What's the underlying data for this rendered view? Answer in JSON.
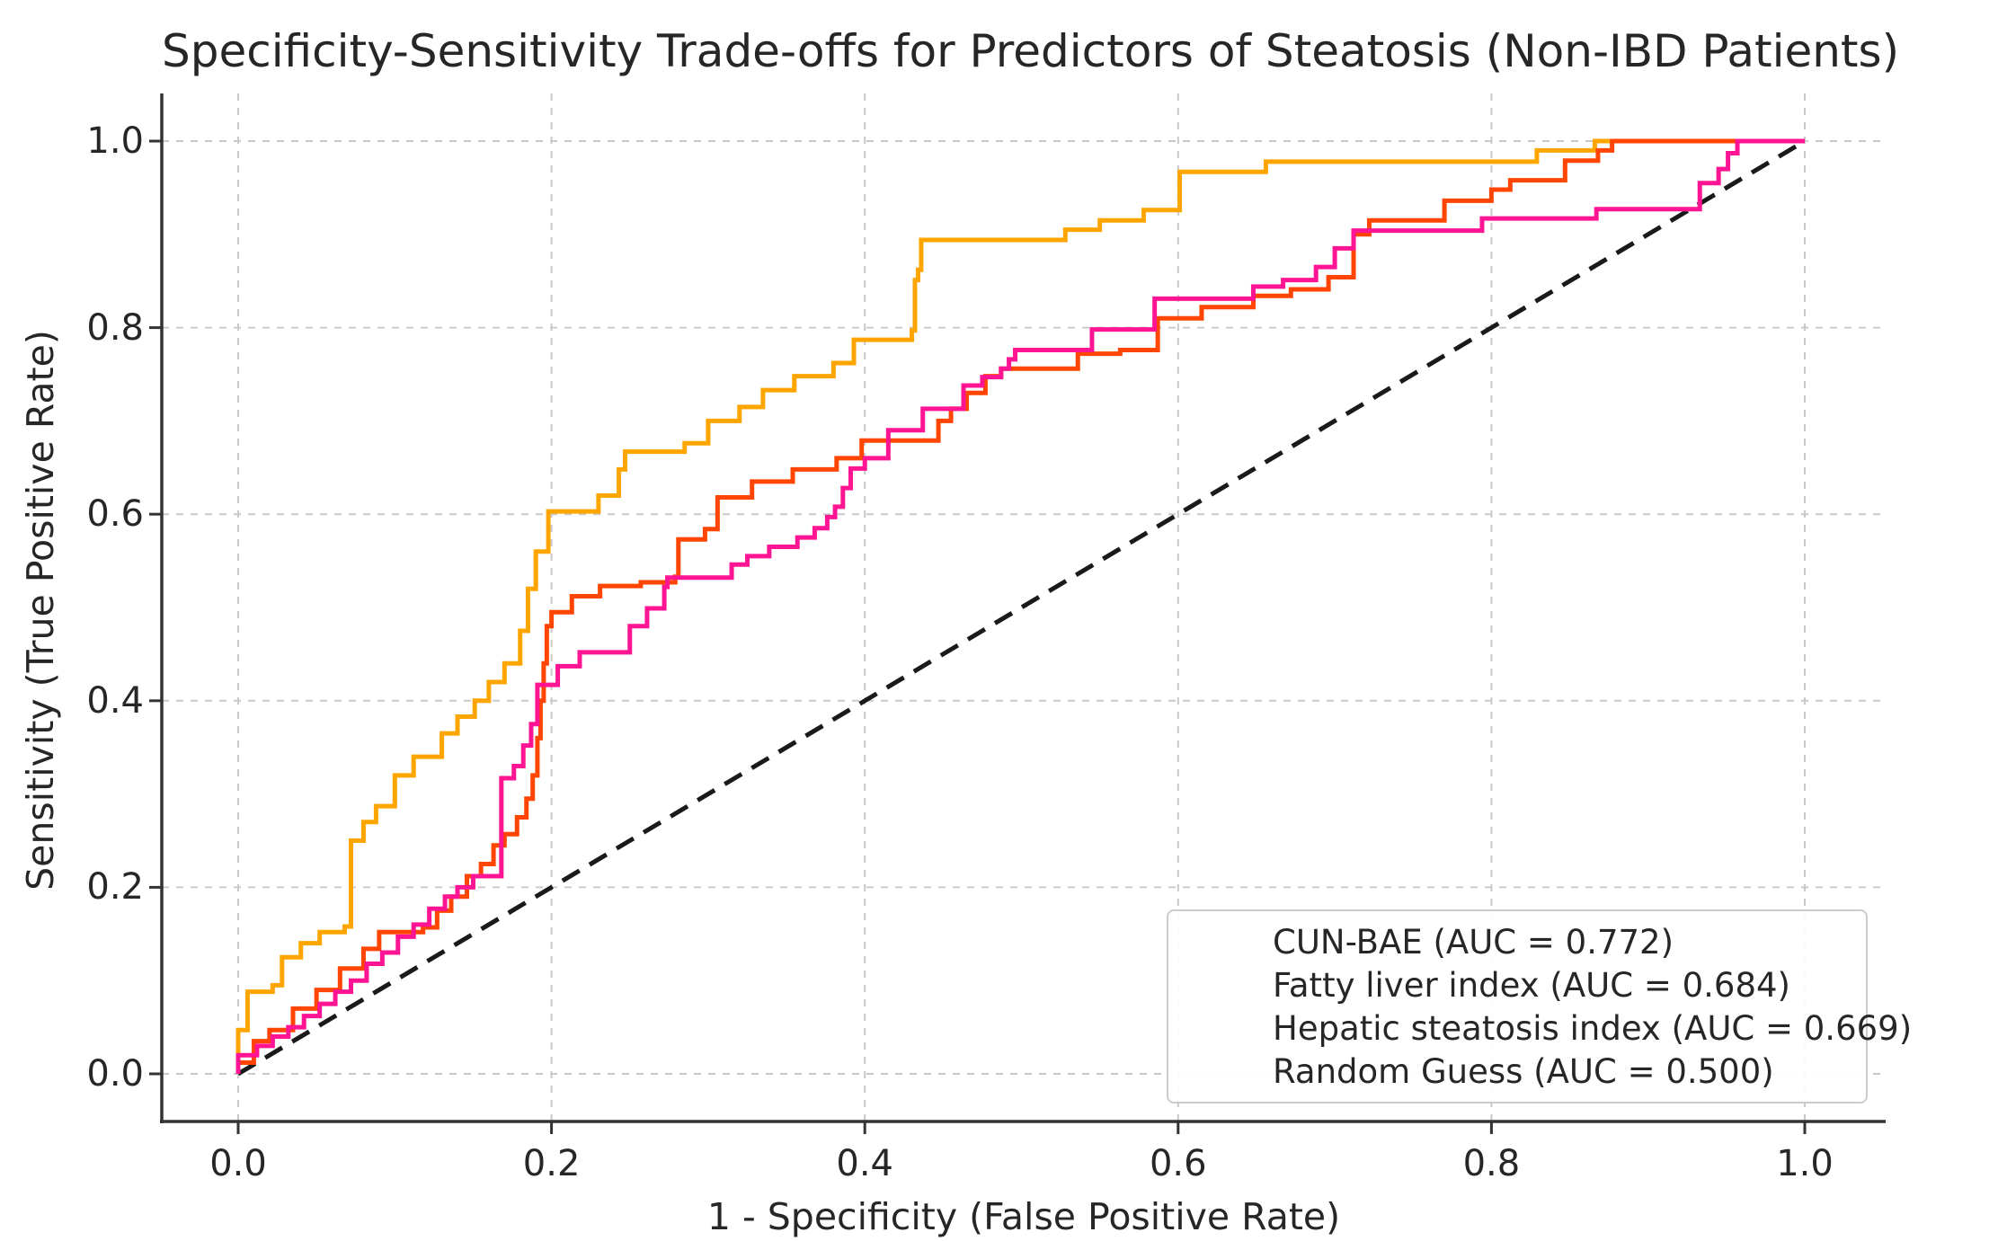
{
  "chart_data": {
    "type": "line",
    "subtype": "roc-step-curves",
    "title": "Specificity-Sensitivity Trade-offs for Predictors of Steatosis (Non-IBD Patients)",
    "xlabel": "1 - Specificity (False Positive Rate)",
    "ylabel": "Sensitivity (True Positive Rate)",
    "xlim": [
      0.0,
      1.0
    ],
    "ylim": [
      0.0,
      1.0
    ],
    "xticks": [
      "0.0",
      "0.2",
      "0.4",
      "0.6",
      "0.8",
      "1.0"
    ],
    "yticks": [
      "0.0",
      "0.2",
      "0.4",
      "0.6",
      "0.8",
      "1.0"
    ],
    "grid": true,
    "grid_style": "dashed",
    "spines": "left-bottom-only",
    "legend_position": "lower right",
    "series": [
      {
        "name": "CUN-BAE (AUC = 0.772)",
        "auc": 0.772,
        "color": "#FFA500",
        "style": "solid",
        "step": true,
        "points": [
          [
            0.0,
            0.0
          ],
          [
            0.0,
            0.047
          ],
          [
            0.006,
            0.088
          ],
          [
            0.022,
            0.095
          ],
          [
            0.028,
            0.125
          ],
          [
            0.04,
            0.14
          ],
          [
            0.052,
            0.152
          ],
          [
            0.068,
            0.158
          ],
          [
            0.072,
            0.25
          ],
          [
            0.08,
            0.27
          ],
          [
            0.088,
            0.287
          ],
          [
            0.1,
            0.32
          ],
          [
            0.112,
            0.34
          ],
          [
            0.13,
            0.365
          ],
          [
            0.14,
            0.383
          ],
          [
            0.151,
            0.4
          ],
          [
            0.16,
            0.42
          ],
          [
            0.17,
            0.44
          ],
          [
            0.18,
            0.475
          ],
          [
            0.185,
            0.52
          ],
          [
            0.19,
            0.56
          ],
          [
            0.198,
            0.603
          ],
          [
            0.23,
            0.62
          ],
          [
            0.243,
            0.648
          ],
          [
            0.247,
            0.667
          ],
          [
            0.285,
            0.676
          ],
          [
            0.3,
            0.7
          ],
          [
            0.32,
            0.715
          ],
          [
            0.335,
            0.733
          ],
          [
            0.355,
            0.748
          ],
          [
            0.38,
            0.762
          ],
          [
            0.393,
            0.787
          ],
          [
            0.43,
            0.797
          ],
          [
            0.432,
            0.851
          ],
          [
            0.434,
            0.862
          ],
          [
            0.436,
            0.894
          ],
          [
            0.528,
            0.905
          ],
          [
            0.55,
            0.915
          ],
          [
            0.578,
            0.926
          ],
          [
            0.601,
            0.967
          ],
          [
            0.656,
            0.978
          ],
          [
            0.829,
            0.99
          ],
          [
            0.866,
            1.0
          ],
          [
            1.0,
            1.0
          ]
        ]
      },
      {
        "name": "Fatty liver index (AUC = 0.684)",
        "auc": 0.684,
        "color": "#FF4500",
        "style": "solid",
        "step": true,
        "points": [
          [
            0.0,
            0.0
          ],
          [
            0.0,
            0.012
          ],
          [
            0.01,
            0.035
          ],
          [
            0.02,
            0.047
          ],
          [
            0.035,
            0.07
          ],
          [
            0.05,
            0.09
          ],
          [
            0.065,
            0.113
          ],
          [
            0.08,
            0.134
          ],
          [
            0.09,
            0.152
          ],
          [
            0.118,
            0.157
          ],
          [
            0.127,
            0.175
          ],
          [
            0.136,
            0.19
          ],
          [
            0.146,
            0.212
          ],
          [
            0.155,
            0.225
          ],
          [
            0.163,
            0.245
          ],
          [
            0.17,
            0.257
          ],
          [
            0.178,
            0.275
          ],
          [
            0.184,
            0.295
          ],
          [
            0.188,
            0.32
          ],
          [
            0.191,
            0.36
          ],
          [
            0.193,
            0.4
          ],
          [
            0.195,
            0.44
          ],
          [
            0.197,
            0.48
          ],
          [
            0.2,
            0.495
          ],
          [
            0.213,
            0.512
          ],
          [
            0.231,
            0.523
          ],
          [
            0.257,
            0.527
          ],
          [
            0.279,
            0.533
          ],
          [
            0.281,
            0.573
          ],
          [
            0.298,
            0.584
          ],
          [
            0.306,
            0.618
          ],
          [
            0.328,
            0.635
          ],
          [
            0.354,
            0.648
          ],
          [
            0.382,
            0.66
          ],
          [
            0.398,
            0.679
          ],
          [
            0.447,
            0.7
          ],
          [
            0.455,
            0.713
          ],
          [
            0.465,
            0.73
          ],
          [
            0.477,
            0.748
          ],
          [
            0.487,
            0.756
          ],
          [
            0.536,
            0.772
          ],
          [
            0.563,
            0.776
          ],
          [
            0.587,
            0.81
          ],
          [
            0.615,
            0.822
          ],
          [
            0.648,
            0.834
          ],
          [
            0.672,
            0.841
          ],
          [
            0.696,
            0.854
          ],
          [
            0.712,
            0.9
          ],
          [
            0.722,
            0.915
          ],
          [
            0.77,
            0.936
          ],
          [
            0.8,
            0.948
          ],
          [
            0.812,
            0.958
          ],
          [
            0.847,
            0.979
          ],
          [
            0.868,
            0.99
          ],
          [
            0.877,
            1.0
          ],
          [
            1.0,
            1.0
          ]
        ]
      },
      {
        "name": "Hepatic steatosis index (AUC = 0.669)",
        "auc": 0.669,
        "color": "#FF1493",
        "style": "solid",
        "step": true,
        "points": [
          [
            0.0,
            0.0
          ],
          [
            0.0,
            0.02
          ],
          [
            0.012,
            0.03
          ],
          [
            0.022,
            0.04
          ],
          [
            0.032,
            0.05
          ],
          [
            0.042,
            0.062
          ],
          [
            0.052,
            0.075
          ],
          [
            0.062,
            0.088
          ],
          [
            0.072,
            0.1
          ],
          [
            0.082,
            0.118
          ],
          [
            0.092,
            0.13
          ],
          [
            0.102,
            0.147
          ],
          [
            0.112,
            0.16
          ],
          [
            0.122,
            0.177
          ],
          [
            0.132,
            0.19
          ],
          [
            0.14,
            0.2
          ],
          [
            0.15,
            0.212
          ],
          [
            0.168,
            0.317
          ],
          [
            0.176,
            0.33
          ],
          [
            0.182,
            0.352
          ],
          [
            0.187,
            0.375
          ],
          [
            0.191,
            0.417
          ],
          [
            0.204,
            0.437
          ],
          [
            0.218,
            0.452
          ],
          [
            0.25,
            0.48
          ],
          [
            0.261,
            0.499
          ],
          [
            0.272,
            0.522
          ],
          [
            0.274,
            0.532
          ],
          [
            0.315,
            0.546
          ],
          [
            0.325,
            0.555
          ],
          [
            0.339,
            0.565
          ],
          [
            0.357,
            0.575
          ],
          [
            0.368,
            0.585
          ],
          [
            0.376,
            0.597
          ],
          [
            0.381,
            0.608
          ],
          [
            0.386,
            0.628
          ],
          [
            0.391,
            0.649
          ],
          [
            0.4,
            0.66
          ],
          [
            0.415,
            0.69
          ],
          [
            0.437,
            0.713
          ],
          [
            0.463,
            0.738
          ],
          [
            0.475,
            0.747
          ],
          [
            0.487,
            0.756
          ],
          [
            0.492,
            0.766
          ],
          [
            0.496,
            0.776
          ],
          [
            0.545,
            0.798
          ],
          [
            0.585,
            0.831
          ],
          [
            0.648,
            0.844
          ],
          [
            0.667,
            0.851
          ],
          [
            0.688,
            0.865
          ],
          [
            0.7,
            0.885
          ],
          [
            0.712,
            0.904
          ],
          [
            0.794,
            0.917
          ],
          [
            0.867,
            0.927
          ],
          [
            0.933,
            0.955
          ],
          [
            0.945,
            0.97
          ],
          [
            0.951,
            0.987
          ],
          [
            0.957,
            1.0
          ],
          [
            1.0,
            1.0
          ]
        ]
      },
      {
        "name": "Random Guess (AUC = 0.500)",
        "auc": 0.5,
        "color": "#1a1a1a",
        "style": "dashed",
        "step": false,
        "points": [
          [
            0.0,
            0.0
          ],
          [
            1.0,
            1.0
          ]
        ]
      }
    ]
  },
  "colors": {
    "grid": "#c9c9c9",
    "spine": "#333333",
    "text": "#262626",
    "legend_border": "#cccccc"
  }
}
